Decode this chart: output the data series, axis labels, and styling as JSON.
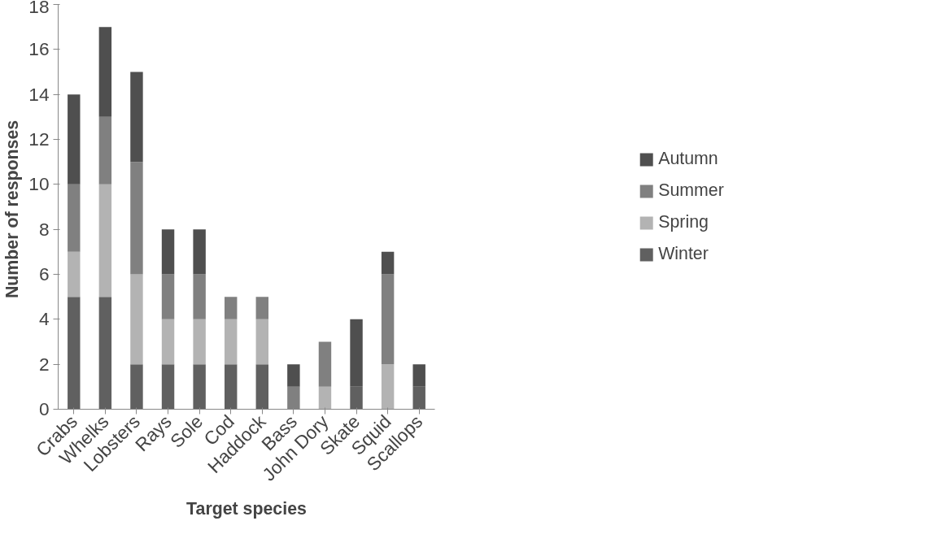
{
  "chart_data": {
    "type": "bar",
    "stacked": true,
    "xlabel": "Target species",
    "ylabel": "Number of  responses",
    "categories": [
      "Crabs",
      "Whelks",
      "Lobsters",
      "Rays",
      "Sole",
      "Cod",
      "Haddock",
      "Bass",
      "John Dory",
      "Skate",
      "Squid",
      "Scallops"
    ],
    "series": [
      {
        "name": "Winter",
        "color": "#606060",
        "values": [
          5,
          5,
          2,
          2,
          2,
          2,
          2,
          0,
          0,
          1,
          0,
          1
        ]
      },
      {
        "name": "Spring",
        "color": "#b3b3b3",
        "values": [
          2,
          5,
          4,
          2,
          2,
          2,
          2,
          0,
          1,
          0,
          2,
          0
        ]
      },
      {
        "name": "Summer",
        "color": "#808080",
        "values": [
          3,
          3,
          5,
          2,
          2,
          1,
          1,
          1,
          2,
          0,
          4,
          0
        ]
      },
      {
        "name": "Autumn",
        "color": "#4f4f4f",
        "values": [
          4,
          4,
          4,
          2,
          2,
          0,
          0,
          1,
          0,
          3,
          1,
          1
        ]
      }
    ],
    "ylim": [
      0,
      18
    ],
    "yticks": [
      0,
      2,
      4,
      6,
      8,
      10,
      12,
      14,
      16,
      18
    ],
    "grid": false,
    "legend": "right"
  }
}
